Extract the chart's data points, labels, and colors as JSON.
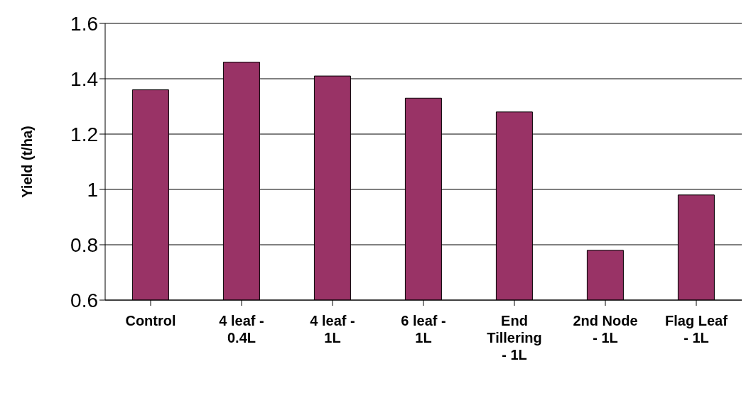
{
  "chart_data": {
    "type": "bar",
    "ylabel": "Yield (t/ha)",
    "categories": [
      "Control",
      "4 leaf - 0.4L",
      "4 leaf - 1L",
      "6 leaf - 1L",
      "End Tillering - 1L",
      "2nd Node - 1L",
      "Flag Leaf - 1L"
    ],
    "values": [
      1.36,
      1.46,
      1.41,
      1.33,
      1.28,
      0.78,
      0.98
    ],
    "color": "#993366",
    "ylim": [
      0.6,
      1.6
    ],
    "yticks": [
      0.6,
      0.8,
      1,
      1.2,
      1.4,
      1.6
    ],
    "grid": "y",
    "legend": false
  }
}
